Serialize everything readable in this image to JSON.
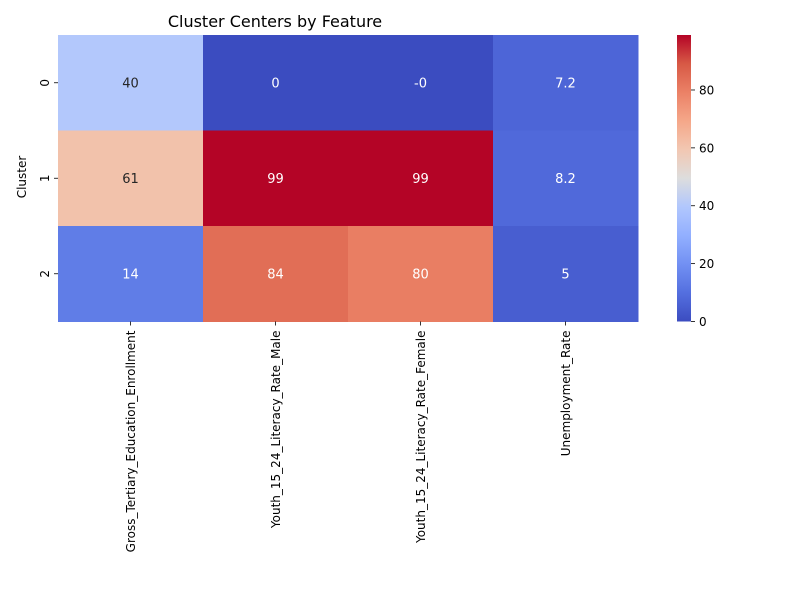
{
  "chart_data": {
    "type": "heatmap",
    "title": "Cluster Centers by Feature",
    "xlabel": "",
    "ylabel": "Cluster",
    "x_categories": [
      "Gross_Tertiary_Education_Enrollment",
      "Youth_15_24_Literacy_Rate_Male",
      "Youth_15_24_Literacy_Rate_Female",
      "Unemployment_Rate"
    ],
    "y_categories": [
      "0",
      "1",
      "2"
    ],
    "values": [
      [
        40.0,
        0.0,
        0.0,
        7.2
      ],
      [
        61.0,
        99.0,
        99.0,
        8.2
      ],
      [
        14.0,
        84.0,
        80.0,
        5.0
      ]
    ],
    "annotations": [
      [
        "40",
        "0",
        "-0",
        "7.2"
      ],
      [
        "61",
        "99",
        "99",
        "8.2"
      ],
      [
        "14",
        "84",
        "80",
        "5"
      ]
    ],
    "colormap": "coolwarm",
    "vmin": 0,
    "vmax": 99,
    "colorbar_ticks": [
      "0",
      "20",
      "40",
      "60",
      "80"
    ],
    "colorbar_tick_values": [
      0,
      20,
      40,
      60,
      80
    ]
  }
}
